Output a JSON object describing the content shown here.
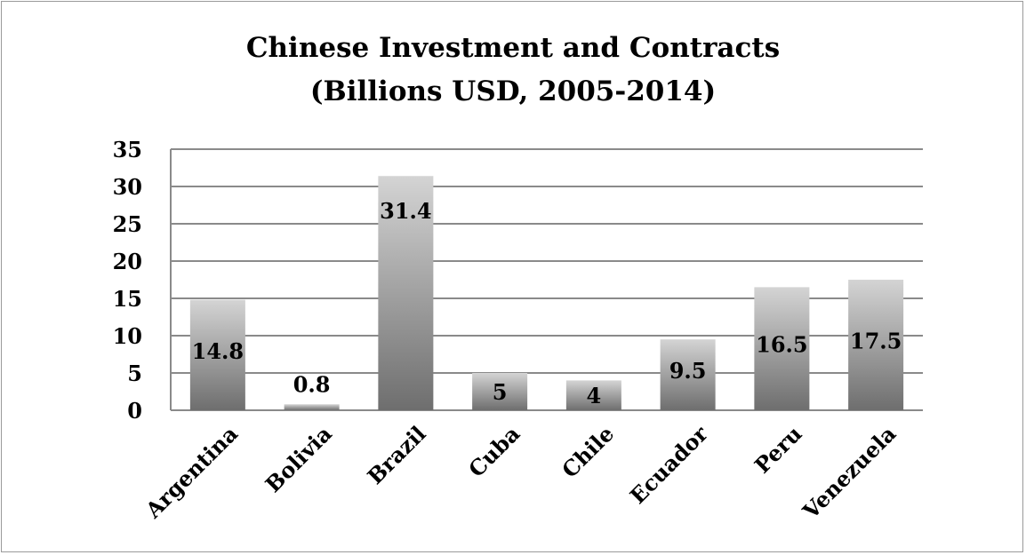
{
  "chart_data": {
    "type": "bar",
    "title": "Chinese Investment and Contracts",
    "subtitle": "(Billions USD, 2005-2014)",
    "categories": [
      "Argentina",
      "Bolivia",
      "Brazil",
      "Cuba",
      "Chile",
      "Ecuador",
      "Peru",
      "Venezuela"
    ],
    "values": [
      14.8,
      0.8,
      31.4,
      5,
      4,
      9.5,
      16.5,
      17.5
    ],
    "data_labels": [
      "14.8",
      "0.8",
      "31.4",
      "5",
      "4",
      "9.5",
      "16.5",
      "17.5"
    ],
    "y_ticks": [
      "0",
      "5",
      "10",
      "15",
      "20",
      "25",
      "30",
      "35"
    ],
    "xlabel": "",
    "ylabel": "",
    "ylim": [
      0,
      35
    ],
    "grid": true,
    "legend": "none",
    "bar_gradient": [
      "#d4d4d4",
      "#6e6e6e"
    ],
    "gridline_color": "#8a8a8a"
  }
}
